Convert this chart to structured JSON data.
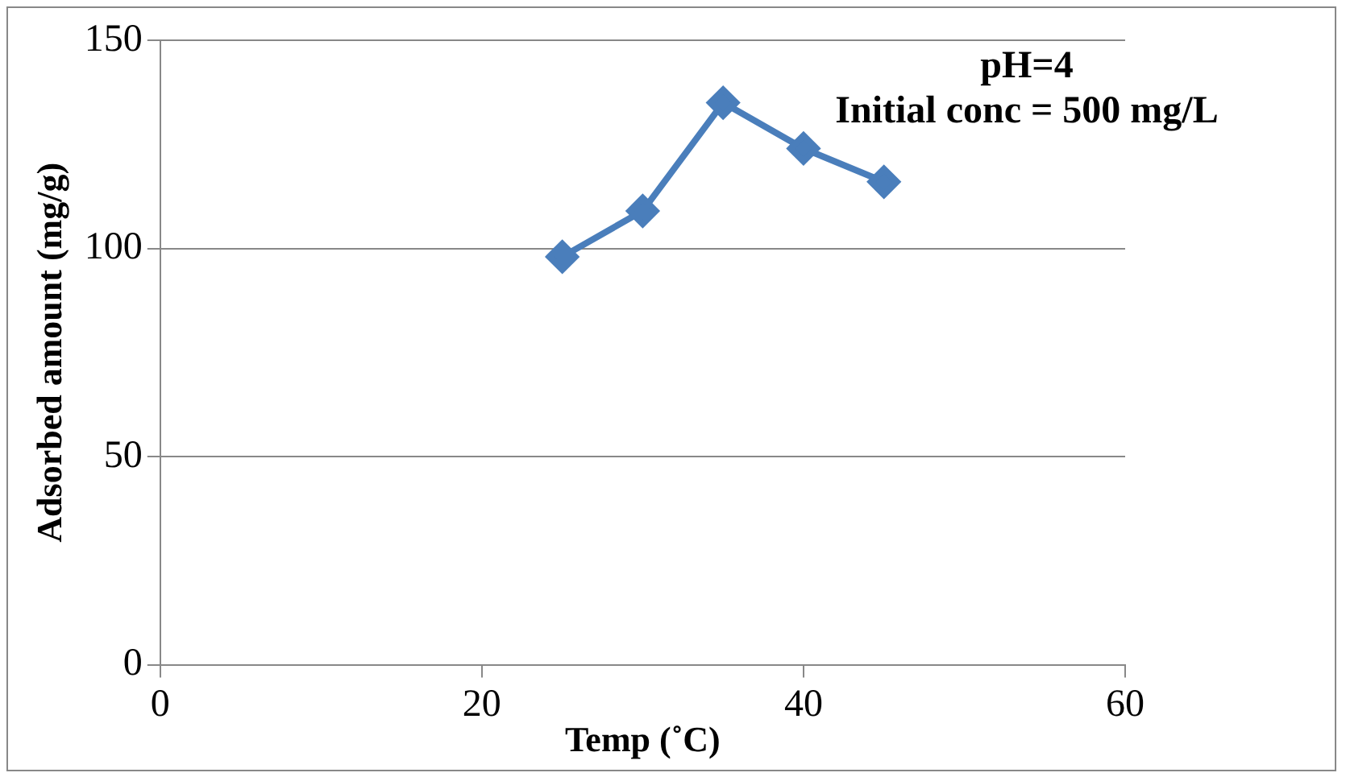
{
  "chart_data": {
    "type": "line",
    "xlabel": "Temp (˚C)",
    "ylabel": "Adsorbed amount (mg/g)",
    "annotations": [
      "pH=4",
      "Initial conc = 500 mg/L"
    ],
    "x": [
      25,
      30,
      35,
      40,
      45
    ],
    "series": [
      {
        "color": "#4a7ebb",
        "values": [
          98,
          109,
          135,
          124,
          116
        ]
      }
    ],
    "xlim": [
      0,
      60
    ],
    "xticks": [
      0,
      20,
      40,
      60
    ],
    "ylim": [
      0,
      150
    ],
    "yticks": [
      0,
      50,
      100,
      150
    ],
    "grid": "y",
    "legend": false,
    "marker": "diamond",
    "line_style": "solid"
  }
}
